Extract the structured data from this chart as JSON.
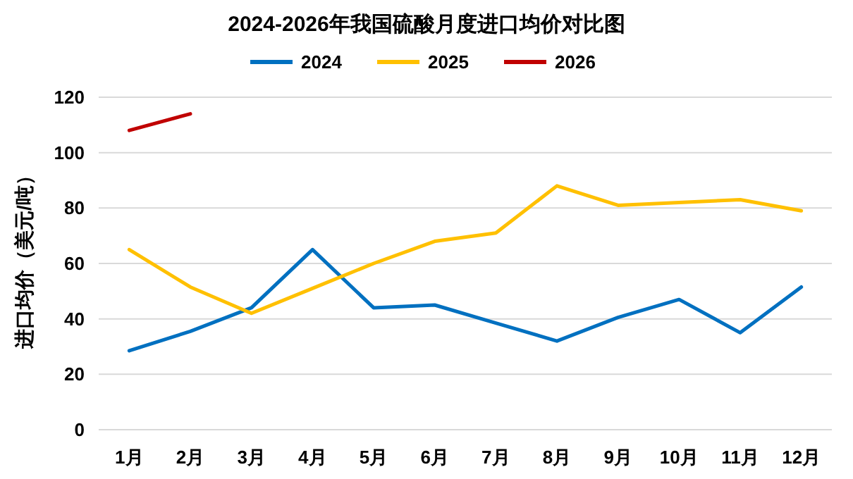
{
  "chart_data": {
    "type": "line",
    "title": "2024-2026年我国硫酸月度进口均价对比图",
    "ylabel": "进口均价（美元/吨）",
    "categories": [
      "1月",
      "2月",
      "3月",
      "4月",
      "5月",
      "6月",
      "7月",
      "8月",
      "9月",
      "10月",
      "11月",
      "12月"
    ],
    "series": [
      {
        "name": "2024",
        "color": "#0070c0",
        "values": [
          28.5,
          35.5,
          44,
          65,
          44,
          45,
          38.5,
          32,
          40.5,
          47,
          35,
          51.5
        ]
      },
      {
        "name": "2025",
        "color": "#ffc000",
        "values": [
          65,
          51.5,
          42,
          51,
          60,
          68,
          71,
          88,
          81,
          82,
          83,
          79
        ]
      },
      {
        "name": "2026",
        "color": "#c00000",
        "values": [
          108,
          114,
          null,
          null,
          null,
          null,
          null,
          null,
          null,
          null,
          null,
          null
        ]
      }
    ],
    "ylim": [
      0,
      120
    ],
    "yticks": [
      0,
      20,
      40,
      60,
      80,
      100,
      120
    ],
    "grid": "y",
    "legend": "top",
    "marker": "none",
    "line_style": "solid"
  }
}
